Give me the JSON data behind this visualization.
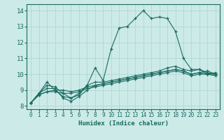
{
  "xlabel": "Humidex (Indice chaleur)",
  "xlim": [
    -0.5,
    23.5
  ],
  "ylim": [
    7.8,
    14.4
  ],
  "xticks": [
    0,
    1,
    2,
    3,
    4,
    5,
    6,
    7,
    8,
    9,
    10,
    11,
    12,
    13,
    14,
    15,
    16,
    17,
    18,
    19,
    20,
    21,
    22,
    23
  ],
  "yticks": [
    8,
    9,
    10,
    11,
    12,
    13,
    14
  ],
  "bg_color": "#cceae8",
  "grid_color": "#b0d8d5",
  "line_color": "#1a6b60",
  "lines": [
    {
      "x": [
        0,
        1,
        2,
        3,
        4,
        5,
        6,
        7,
        8,
        9,
        10,
        11,
        12,
        13,
        14,
        15,
        16,
        17,
        18,
        19,
        20,
        21,
        22,
        23
      ],
      "y": [
        8.2,
        8.8,
        9.5,
        9.0,
        8.6,
        8.5,
        8.8,
        9.3,
        10.4,
        9.6,
        11.6,
        12.9,
        13.0,
        13.5,
        14.0,
        13.5,
        13.6,
        13.5,
        12.7,
        11.0,
        10.3,
        10.3,
        10.0,
        10.1
      ]
    },
    {
      "x": [
        0,
        1,
        2,
        3,
        4,
        5,
        6,
        7,
        8,
        9,
        10,
        11,
        12,
        13,
        14,
        15,
        16,
        17,
        18,
        19,
        20,
        21,
        22,
        23
      ],
      "y": [
        8.2,
        8.8,
        9.1,
        9.1,
        8.5,
        8.3,
        8.6,
        9.0,
        9.3,
        9.4,
        9.5,
        9.6,
        9.7,
        9.8,
        9.9,
        10.0,
        10.1,
        10.2,
        10.3,
        10.2,
        10.0,
        10.1,
        10.2,
        10.0
      ]
    },
    {
      "x": [
        0,
        1,
        2,
        3,
        4,
        5,
        6,
        7,
        8,
        9,
        10,
        11,
        12,
        13,
        14,
        15,
        16,
        17,
        18,
        19,
        20,
        21,
        22,
        23
      ],
      "y": [
        8.2,
        8.7,
        8.9,
        9.0,
        9.0,
        8.9,
        9.0,
        9.2,
        9.3,
        9.4,
        9.5,
        9.6,
        9.7,
        9.8,
        9.9,
        10.0,
        10.1,
        10.2,
        10.3,
        10.2,
        10.0,
        10.1,
        10.0,
        10.0
      ]
    },
    {
      "x": [
        0,
        1,
        2,
        3,
        4,
        5,
        6,
        7,
        8,
        9,
        10,
        11,
        12,
        13,
        14,
        15,
        16,
        17,
        18,
        19,
        20,
        21,
        22,
        23
      ],
      "y": [
        8.2,
        8.7,
        8.9,
        8.9,
        8.8,
        8.8,
        8.9,
        9.1,
        9.2,
        9.3,
        9.4,
        9.5,
        9.6,
        9.7,
        9.8,
        9.9,
        10.0,
        10.1,
        10.2,
        10.1,
        9.9,
        10.0,
        10.0,
        9.9
      ]
    },
    {
      "x": [
        0,
        1,
        2,
        3,
        4,
        5,
        6,
        7,
        8,
        9,
        10,
        11,
        12,
        13,
        14,
        15,
        16,
        17,
        18,
        19,
        20,
        21,
        22,
        23
      ],
      "y": [
        8.2,
        8.8,
        9.3,
        9.2,
        8.8,
        8.5,
        8.7,
        9.3,
        9.5,
        9.5,
        9.6,
        9.7,
        9.8,
        9.9,
        10.0,
        10.1,
        10.2,
        10.4,
        10.5,
        10.3,
        10.2,
        10.3,
        10.1,
        10.0
      ]
    }
  ]
}
